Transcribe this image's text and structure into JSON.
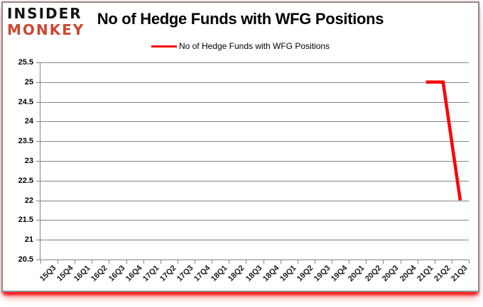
{
  "branding": {
    "line1": "INSIDER",
    "line2": "MONKEY"
  },
  "header": {
    "title": "No of Hedge Funds with WFG Positions"
  },
  "legend": {
    "label": "No of Hedge Funds with WFG Positions"
  },
  "colors": {
    "accent_red": "#ff0000",
    "logo_red": "#cd4732",
    "grid_gray": "#848484",
    "card_border_gray": "#8c8c8c",
    "text_black": "#000000"
  },
  "chart_data": {
    "type": "line",
    "title": "No of Hedge Funds with WFG Positions",
    "categories": [
      "15Q3",
      "15Q4",
      "16Q1",
      "16Q2",
      "16Q3",
      "16Q4",
      "17Q1",
      "17Q2",
      "17Q3",
      "17Q4",
      "18Q1",
      "18Q2",
      "18Q3",
      "18Q4",
      "19Q1",
      "19Q2",
      "19Q3",
      "19Q4",
      "20Q1",
      "20Q2",
      "20Q3",
      "20Q4",
      "21Q1",
      "21Q2",
      "21Q3"
    ],
    "series": [
      {
        "name": "No of Hedge Funds with WFG Positions",
        "color": "#ff0000",
        "values": [
          null,
          null,
          null,
          null,
          null,
          null,
          null,
          null,
          null,
          null,
          null,
          null,
          null,
          null,
          null,
          null,
          null,
          null,
          null,
          null,
          null,
          null,
          25,
          25,
          22
        ]
      }
    ],
    "ylim": [
      20.5,
      25.5
    ],
    "ytick_step": 0.5,
    "grid": true,
    "legend_position": "top",
    "x_label_rotation": -45
  }
}
